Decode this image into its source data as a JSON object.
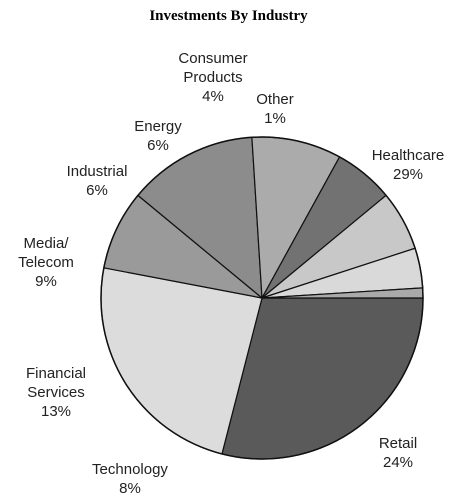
{
  "chart_data": {
    "type": "pie",
    "title": "Investments By Industry",
    "slices": [
      {
        "label": "Healthcare",
        "label_lines": [
          "Healthcare",
          "29%"
        ],
        "value": 29,
        "color": "#5a5a5a"
      },
      {
        "label": "Retail",
        "label_lines": [
          "Retail",
          "24%"
        ],
        "value": 24,
        "color": "#dcdcdc"
      },
      {
        "label": "Technology",
        "label_lines": [
          "Technology",
          "8%"
        ],
        "value": 8,
        "color": "#9a9a9a"
      },
      {
        "label": "Financial Services",
        "label_lines": [
          "Financial",
          "Services",
          "13%"
        ],
        "value": 13,
        "color": "#8c8c8c"
      },
      {
        "label": "Media/Telecom",
        "label_lines": [
          "Media/",
          "Telecom",
          "9%"
        ],
        "value": 9,
        "color": "#ababab"
      },
      {
        "label": "Industrial",
        "label_lines": [
          "Industrial",
          "6%"
        ],
        "value": 6,
        "color": "#727272"
      },
      {
        "label": "Energy",
        "label_lines": [
          "Energy",
          "6%"
        ],
        "value": 6,
        "color": "#c8c8c8"
      },
      {
        "label": "Consumer Products",
        "label_lines": [
          "Consumer",
          "Products",
          "4%"
        ],
        "value": 4,
        "color": "#d9d9d9"
      },
      {
        "label": "Other",
        "label_lines": [
          "Other",
          "1%"
        ],
        "value": 1,
        "color": "#a9a9a9"
      }
    ]
  }
}
